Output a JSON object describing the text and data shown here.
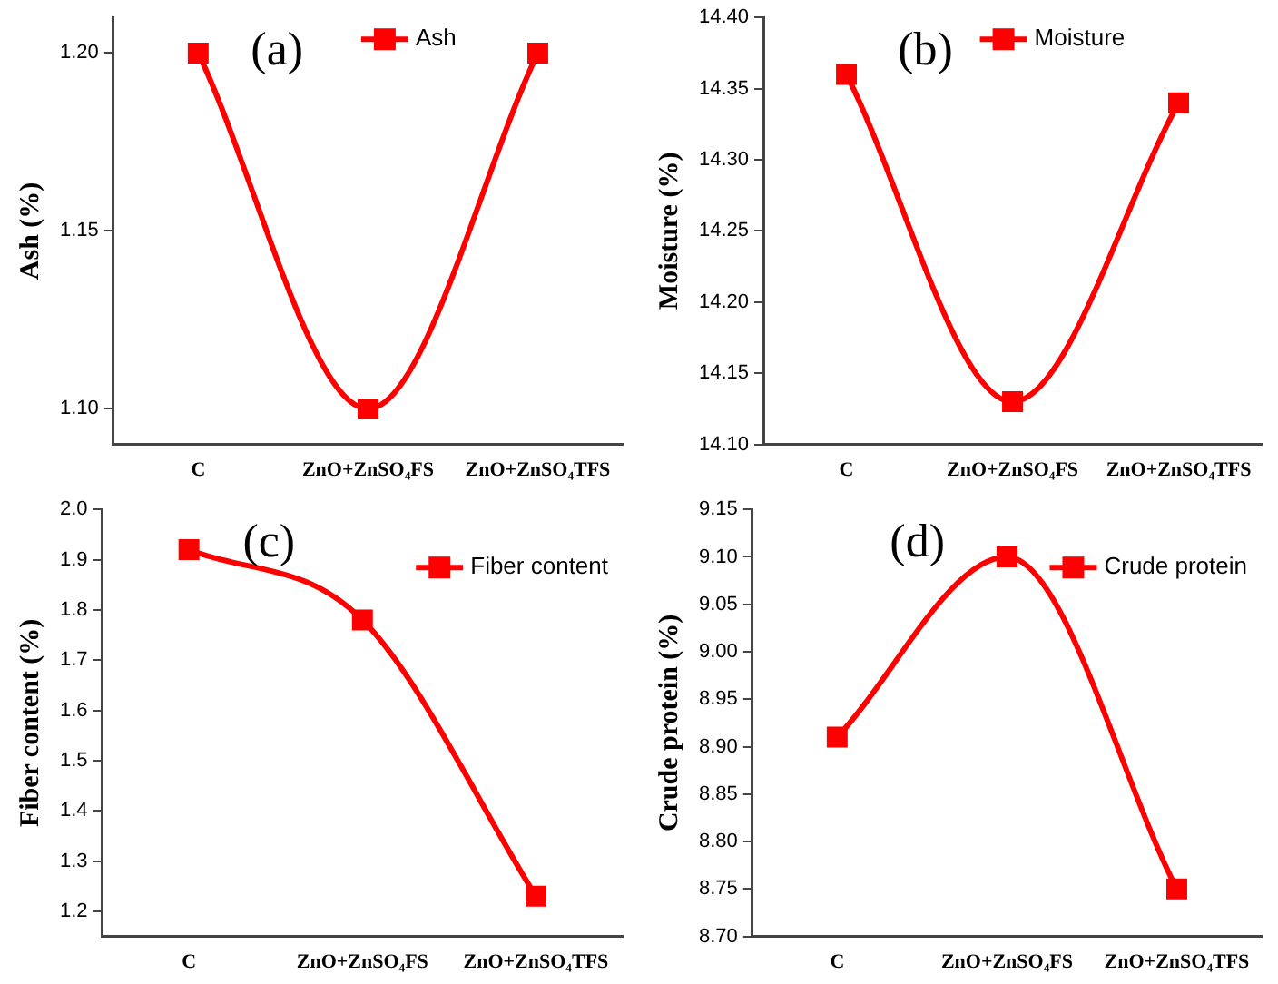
{
  "chart_data": [
    {
      "type": "line",
      "categories": [
        "C",
        "ZnO+ZnSO₄FS",
        "ZnO+ZnSO₄TFS"
      ],
      "ylabel": "Ash (%)",
      "ylim": [
        1.09,
        1.21
      ],
      "yticks": [
        {
          "value": 1.1,
          "label": "1.10"
        },
        1.15,
        {
          "value": 1.2,
          "label": "1.20"
        }
      ],
      "annotations": [
        "(a)"
      ],
      "legend": "top",
      "marker": "square",
      "line_style": "solid",
      "grid": false,
      "series": [
        {
          "name": "Ash",
          "color": "#ff0000",
          "values": [
            1.2,
            1.1,
            1.2
          ]
        }
      ]
    },
    {
      "type": "line",
      "categories": [
        "C",
        "ZnO+ZnSO₄FS",
        "ZnO+ZnSO₄TFS"
      ],
      "ylabel": "Moisture (%)",
      "ylim": [
        14.1,
        14.4
      ],
      "yticks": [
        {
          "value": 14.1,
          "label": "14.10"
        },
        14.15,
        {
          "value": 14.2,
          "label": "14.20"
        },
        14.25,
        {
          "value": 14.3,
          "label": "14.30"
        },
        14.35,
        {
          "value": 14.4,
          "label": "14.40"
        }
      ],
      "annotations": [
        "(b)"
      ],
      "legend": "top",
      "marker": "square",
      "line_style": "solid",
      "grid": false,
      "series": [
        {
          "name": "Moisture",
          "color": "#ff0000",
          "values": [
            14.36,
            14.13,
            14.34
          ]
        }
      ]
    },
    {
      "type": "line",
      "categories": [
        "C",
        "ZnO+ZnSO₄FS",
        "ZnO+ZnSO₄TFS"
      ],
      "ylabel": "Fiber content (%)",
      "ylim": [
        1.15,
        2.0
      ],
      "yticks": [
        1.2,
        1.3,
        1.4,
        1.5,
        1.6,
        1.7,
        1.8,
        1.9,
        {
          "value": 2.0,
          "label": "2.0"
        }
      ],
      "annotations": [
        "(c)"
      ],
      "legend": "top right",
      "marker": "square",
      "line_style": "solid",
      "grid": false,
      "series": [
        {
          "name": "Fiber content",
          "color": "#ff0000",
          "values": [
            1.92,
            1.78,
            1.23
          ]
        }
      ]
    },
    {
      "type": "line",
      "categories": [
        "C",
        "ZnO+ZnSO₄FS",
        "ZnO+ZnSO₄TFS"
      ],
      "ylabel": "Crude protein (%)",
      "ylim": [
        8.7,
        9.15
      ],
      "yticks": [
        {
          "value": 8.7,
          "label": "8.70"
        },
        8.75,
        {
          "value": 8.8,
          "label": "8.80"
        },
        8.85,
        {
          "value": 8.9,
          "label": "8.90"
        },
        8.95,
        {
          "value": 9.0,
          "label": "9.00"
        },
        9.05,
        {
          "value": 9.1,
          "label": "9.10"
        },
        9.15
      ],
      "annotations": [
        "(d)"
      ],
      "legend": "top right",
      "marker": "square",
      "line_style": "solid",
      "grid": false,
      "series": [
        {
          "name": "Crude protein",
          "color": "#ff0000",
          "values": [
            8.91,
            9.1,
            8.75
          ]
        }
      ]
    }
  ]
}
